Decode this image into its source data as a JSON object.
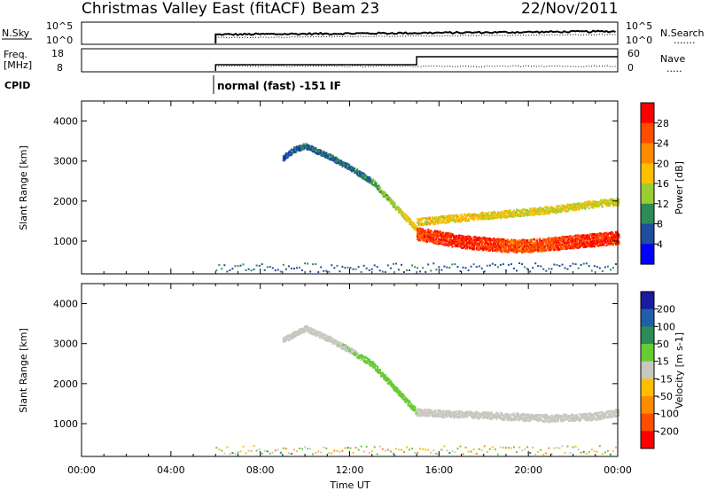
{
  "header": {
    "title": "Christmas Valley East (fitACF)",
    "beam": "Beam 23",
    "date": "22/Nov/2011"
  },
  "panels": {
    "nsky": {
      "label": "N.Sky",
      "tick_labels": [
        "10^5",
        "10^0"
      ],
      "right_tick_labels": [
        "10^5",
        "10^0"
      ],
      "right_label": "N.Search",
      "right_legend": "......."
    },
    "freq": {
      "label_line1": "Freq.",
      "label_line2": "[MHz]",
      "tick_labels": [
        "18",
        "8"
      ],
      "right_tick_labels": [
        "60",
        "0"
      ],
      "right_label": "Nave",
      "right_legend": "....."
    },
    "cpid": {
      "label": "CPID",
      "mode_text": "normal (fast) -151 IF"
    }
  },
  "power_colorbar": {
    "label": "Power [dB]",
    "tick_labels": [
      "28",
      "24",
      "20",
      "16",
      "12",
      "8",
      "4"
    ],
    "colors": [
      "#ff0000",
      "#ff4d00",
      "#ff8c00",
      "#ffbf00",
      "#9acd32",
      "#2e8b57",
      "#1e4d9e",
      "#0000ff"
    ]
  },
  "velocity_colorbar": {
    "label": "Velocity [m s-1]",
    "tick_labels": [
      "200",
      "100",
      "50",
      "15",
      "-15",
      "-50",
      "-100",
      "-200"
    ],
    "colors": [
      "#1a1a9e",
      "#1f5fa8",
      "#2e8b57",
      "#66cc33",
      "#c8c8c0",
      "#ffbf00",
      "#ff8c00",
      "#ff4d00",
      "#ff0000"
    ]
  },
  "axes": {
    "ylabel": "Slant Range [km]",
    "xlabel": "Time UT",
    "xticks": [
      "00:00",
      "04:00",
      "08:00",
      "12:00",
      "16:00",
      "20:00",
      "00:00"
    ],
    "yticks": [
      "4000",
      "3000",
      "2000",
      "1000"
    ]
  },
  "chart_data": [
    {
      "type": "heatmap",
      "name": "Power",
      "xlabel": "Time UT",
      "ylabel": "Slant Range [km]",
      "xlim": [
        0,
        24
      ],
      "ylim": [
        180,
        4500
      ],
      "yticks": [
        1000,
        2000,
        3000,
        4000
      ],
      "colorbar": {
        "label": "Power [dB]",
        "range": [
          0,
          32
        ]
      },
      "features": [
        {
          "feature": "scatter track",
          "time": [
            9.0,
            9.5,
            10.0,
            11.0,
            12.0,
            13.0,
            14.0,
            15.0
          ],
          "range_km": [
            3100,
            3300,
            3400,
            3150,
            2850,
            2500,
            1900,
            1300
          ],
          "power_db": [
            6,
            6,
            7,
            7,
            8,
            10,
            14,
            18
          ]
        },
        {
          "feature": "main echo band",
          "time": [
            15.0,
            16.0,
            17.0,
            18.0,
            19.0,
            20.0,
            21.0,
            22.0,
            23.0,
            24.0
          ],
          "range_km": [
            1200,
            1100,
            1000,
            950,
            900,
            900,
            950,
            1000,
            1050,
            1100
          ],
          "power_db": [
            26,
            28,
            28,
            28,
            26,
            26,
            26,
            28,
            28,
            28
          ]
        },
        {
          "feature": "upper band",
          "time": [
            15.0,
            17.0,
            19.0,
            21.0,
            23.0,
            24.0
          ],
          "range_km": [
            1500,
            1600,
            1700,
            1800,
            1950,
            2000
          ],
          "power_db": [
            18,
            18,
            17,
            16,
            16,
            15
          ]
        }
      ]
    },
    {
      "type": "heatmap",
      "name": "Velocity",
      "xlabel": "Time UT",
      "ylabel": "Slant Range [km]",
      "xlim": [
        0,
        24
      ],
      "ylim": [
        180,
        4500
      ],
      "yticks": [
        1000,
        2000,
        3000,
        4000
      ],
      "colorbar": {
        "label": "Velocity [m s-1]",
        "range": [
          -250,
          250
        ]
      },
      "features": [
        {
          "feature": "scatter track",
          "time": [
            9.0,
            10.0,
            11.0,
            12.0,
            13.0,
            14.0,
            15.0
          ],
          "range_km": [
            3100,
            3400,
            3150,
            2850,
            2500,
            1900,
            1300
          ],
          "velocity": [
            0,
            0,
            5,
            10,
            30,
            40,
            40
          ]
        },
        {
          "feature": "low-velocity band",
          "time": [
            15.0,
            17.0,
            19.0,
            21.0,
            23.0,
            24.0
          ],
          "range_km": [
            1300,
            1250,
            1200,
            1150,
            1200,
            1300
          ],
          "velocity": [
            0,
            0,
            0,
            0,
            0,
            0
          ]
        }
      ]
    }
  ]
}
